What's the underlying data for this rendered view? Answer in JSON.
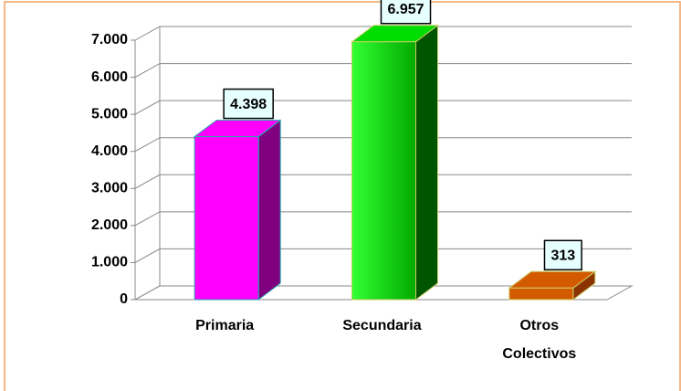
{
  "chart_data": {
    "type": "bar3d",
    "categories": [
      "Primaria",
      "Secundaria",
      "Otros Colectivos"
    ],
    "values": [
      4398,
      6957,
      313
    ],
    "value_labels": [
      "4.398",
      "6.957",
      "313"
    ],
    "colors": [
      "#ff00ff",
      "#00dd00",
      "#d45a00"
    ],
    "ylim": [
      0,
      7000
    ],
    "yticks": [
      0,
      {
        "value": 1000,
        "label": "1.000"
      },
      {
        "value": 2000,
        "label": "2.000"
      },
      {
        "value": 3000,
        "label": "3.000"
      },
      {
        "value": 4000,
        "label": "4.000"
      },
      {
        "value": 5000,
        "label": "5.000"
      },
      {
        "value": 6000,
        "label": "6.000"
      },
      {
        "value": 7000,
        "label": "7.000"
      }
    ],
    "grid": true
  }
}
